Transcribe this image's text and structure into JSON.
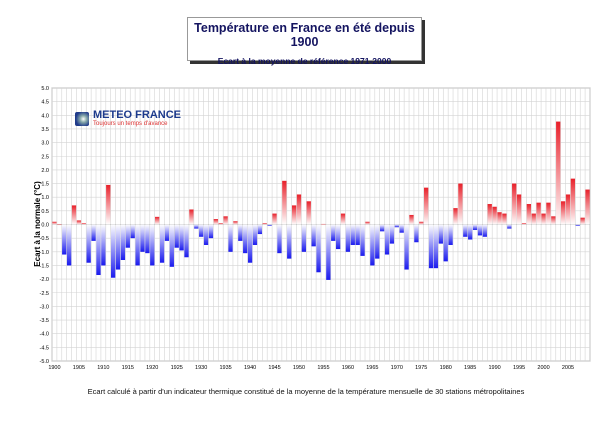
{
  "chart_data": {
    "type": "bar",
    "title": "Température en France en été depuis 1900",
    "subtitle": "Ecart à la moyenne de référence 1971-2000",
    "xlabel": "",
    "ylabel": "Ecart à la normale (°C)",
    "ylim": [
      -5.0,
      5.0
    ],
    "yticks": [
      "-5.0",
      "-4.5",
      "-4.0",
      "-3.5",
      "-3.0",
      "-2.5",
      "-2.0",
      "-1.5",
      "-1.0",
      "-0.5",
      "0.0",
      "0.5",
      "1.0",
      "1.5",
      "2.0",
      "2.5",
      "3.0",
      "3.5",
      "4.0",
      "4.5",
      "5.0"
    ],
    "xticks": [
      "1900",
      "1905",
      "1910",
      "1915",
      "1920",
      "1925",
      "1930",
      "1935",
      "1940",
      "1945",
      "1950",
      "1955",
      "1960",
      "1965",
      "1970",
      "1975",
      "1980",
      "1985",
      "1990",
      "1995",
      "2000",
      "2005"
    ],
    "grid": true,
    "positive_color": "#e8202a",
    "negative_color": "#1a1aee",
    "categories": [
      1900,
      1901,
      1902,
      1903,
      1904,
      1905,
      1906,
      1907,
      1908,
      1909,
      1910,
      1911,
      1912,
      1913,
      1914,
      1915,
      1916,
      1917,
      1918,
      1919,
      1920,
      1921,
      1922,
      1923,
      1924,
      1925,
      1926,
      1927,
      1928,
      1929,
      1930,
      1931,
      1932,
      1933,
      1934,
      1935,
      1936,
      1937,
      1938,
      1939,
      1940,
      1941,
      1942,
      1943,
      1944,
      1945,
      1946,
      1947,
      1948,
      1949,
      1950,
      1951,
      1952,
      1953,
      1954,
      1955,
      1956,
      1957,
      1958,
      1959,
      1960,
      1961,
      1962,
      1963,
      1964,
      1965,
      1966,
      1967,
      1968,
      1969,
      1970,
      1971,
      1972,
      1973,
      1974,
      1975,
      1976,
      1977,
      1978,
      1979,
      1980,
      1981,
      1982,
      1983,
      1984,
      1985,
      1986,
      1987,
      1988,
      1989,
      1990,
      1991,
      1992,
      1993,
      1994,
      1995,
      1996,
      1997,
      1998,
      1999,
      2000,
      2001,
      2002,
      2003,
      2004,
      2005,
      2006,
      2007,
      2008,
      2009
    ],
    "values": [
      0.1,
      0.0,
      -1.1,
      -1.5,
      0.7,
      0.15,
      0.05,
      -1.4,
      -0.6,
      -1.85,
      -1.5,
      1.45,
      -1.95,
      -1.65,
      -1.3,
      -0.85,
      -0.5,
      -1.5,
      -1.0,
      -1.05,
      -1.5,
      0.28,
      -1.4,
      -0.6,
      -1.55,
      -0.85,
      -0.95,
      -1.2,
      0.55,
      -0.15,
      -0.45,
      -0.75,
      -0.5,
      0.2,
      0.05,
      0.3,
      -1.0,
      0.12,
      -0.6,
      -1.05,
      -1.4,
      -0.75,
      -0.35,
      0.05,
      -0.05,
      0.4,
      -1.05,
      1.6,
      -1.25,
      0.7,
      1.1,
      -1.0,
      0.85,
      -0.8,
      -1.75,
      0.02,
      -2.03,
      -0.6,
      -0.9,
      0.4,
      -1.0,
      -0.75,
      -0.75,
      -1.15,
      0.1,
      -1.5,
      -1.25,
      -0.25,
      -1.1,
      -0.7,
      -0.1,
      -0.3,
      -1.65,
      0.35,
      -0.65,
      0.1,
      1.35,
      -1.6,
      -1.6,
      -0.7,
      -1.35,
      -0.75,
      0.6,
      1.5,
      -0.45,
      -0.55,
      -0.2,
      -0.4,
      -0.45,
      0.75,
      0.65,
      0.45,
      0.4,
      -0.15,
      1.5,
      1.1,
      0.05,
      0.75,
      0.4,
      0.8,
      0.4,
      0.8,
      0.3,
      3.77,
      0.85,
      1.1,
      1.68,
      -0.05,
      0.25,
      1.28
    ]
  },
  "logo": {
    "name": "METEO FRANCE",
    "tagline": "Toujours un temps d'avance"
  },
  "footnote": "Ecart calculé à partir d'un indicateur thermique constitué de la moyenne de la température mensuelle de 30 stations métropolitaines"
}
